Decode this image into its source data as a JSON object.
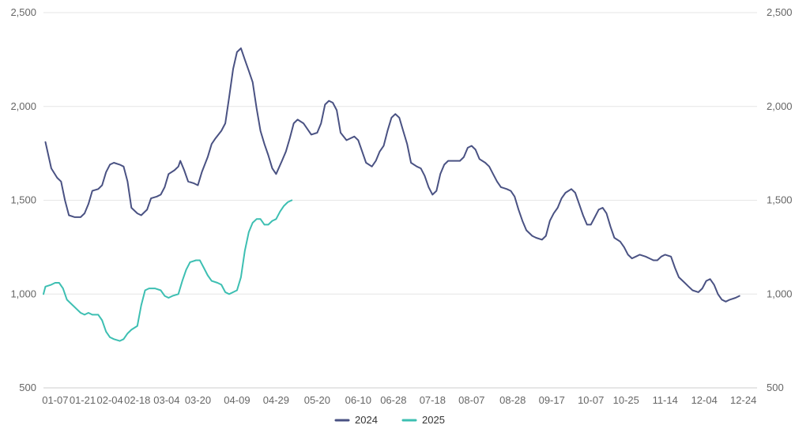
{
  "chart_data": {
    "type": "line",
    "title": "",
    "xlabel": "",
    "ylabel": "",
    "ylim": [
      500,
      2500
    ],
    "y_ticks": [
      500,
      1000,
      1500,
      2000,
      2500
    ],
    "y_tick_labels": [
      "500",
      "1,000",
      "1,500",
      "2,000",
      "2,500"
    ],
    "x_tick_labels": [
      "01-07",
      "01-21",
      "02-04",
      "02-18",
      "03-04",
      "03-20",
      "04-09",
      "04-29",
      "05-20",
      "06-10",
      "06-28",
      "07-18",
      "08-07",
      "08-28",
      "09-17",
      "10-07",
      "10-25",
      "11-14",
      "12-04",
      "12-24"
    ],
    "x_range_days": [
      1,
      366
    ],
    "grid": "horizontal",
    "legend_position": "bottom-center",
    "x_axis_format": "MM-DD",
    "series": [
      {
        "name": "2024",
        "color": "#4a5283",
        "points": [
          [
            "01-02",
            1810
          ],
          [
            "01-05",
            1670
          ],
          [
            "01-08",
            1620
          ],
          [
            "01-10",
            1600
          ],
          [
            "01-12",
            1500
          ],
          [
            "01-14",
            1420
          ],
          [
            "01-17",
            1410
          ],
          [
            "01-20",
            1410
          ],
          [
            "01-22",
            1430
          ],
          [
            "01-24",
            1480
          ],
          [
            "01-26",
            1550
          ],
          [
            "01-29",
            1560
          ],
          [
            "01-31",
            1580
          ],
          [
            "02-02",
            1650
          ],
          [
            "02-04",
            1690
          ],
          [
            "02-06",
            1700
          ],
          [
            "02-09",
            1690
          ],
          [
            "02-11",
            1680
          ],
          [
            "02-13",
            1600
          ],
          [
            "02-15",
            1460
          ],
          [
            "02-18",
            1430
          ],
          [
            "02-20",
            1420
          ],
          [
            "02-23",
            1450
          ],
          [
            "02-25",
            1510
          ],
          [
            "02-28",
            1520
          ],
          [
            "03-01",
            1530
          ],
          [
            "03-03",
            1570
          ],
          [
            "03-05",
            1640
          ],
          [
            "03-08",
            1660
          ],
          [
            "03-10",
            1680
          ],
          [
            "03-11",
            1710
          ],
          [
            "03-13",
            1660
          ],
          [
            "03-15",
            1600
          ],
          [
            "03-18",
            1590
          ],
          [
            "03-20",
            1580
          ],
          [
            "03-22",
            1650
          ],
          [
            "03-25",
            1730
          ],
          [
            "03-27",
            1800
          ],
          [
            "03-29",
            1830
          ],
          [
            "04-01",
            1870
          ],
          [
            "04-03",
            1910
          ],
          [
            "04-05",
            2050
          ],
          [
            "04-07",
            2200
          ],
          [
            "04-09",
            2290
          ],
          [
            "04-11",
            2310
          ],
          [
            "04-13",
            2250
          ],
          [
            "04-15",
            2190
          ],
          [
            "04-17",
            2130
          ],
          [
            "04-19",
            1990
          ],
          [
            "04-21",
            1870
          ],
          [
            "04-23",
            1800
          ],
          [
            "04-25",
            1740
          ],
          [
            "04-27",
            1670
          ],
          [
            "04-29",
            1640
          ],
          [
            "05-02",
            1710
          ],
          [
            "05-04",
            1760
          ],
          [
            "05-06",
            1830
          ],
          [
            "05-08",
            1910
          ],
          [
            "05-10",
            1930
          ],
          [
            "05-13",
            1910
          ],
          [
            "05-15",
            1880
          ],
          [
            "05-17",
            1850
          ],
          [
            "05-20",
            1860
          ],
          [
            "05-22",
            1910
          ],
          [
            "05-24",
            2010
          ],
          [
            "05-26",
            2030
          ],
          [
            "05-28",
            2020
          ],
          [
            "05-30",
            1980
          ],
          [
            "06-01",
            1860
          ],
          [
            "06-04",
            1820
          ],
          [
            "06-06",
            1830
          ],
          [
            "06-08",
            1840
          ],
          [
            "06-10",
            1820
          ],
          [
            "06-12",
            1760
          ],
          [
            "06-14",
            1700
          ],
          [
            "06-17",
            1680
          ],
          [
            "06-19",
            1710
          ],
          [
            "06-21",
            1760
          ],
          [
            "06-23",
            1790
          ],
          [
            "06-25",
            1870
          ],
          [
            "06-27",
            1940
          ],
          [
            "06-29",
            1960
          ],
          [
            "07-01",
            1940
          ],
          [
            "07-03",
            1870
          ],
          [
            "07-05",
            1800
          ],
          [
            "07-07",
            1700
          ],
          [
            "07-10",
            1680
          ],
          [
            "07-12",
            1670
          ],
          [
            "07-14",
            1630
          ],
          [
            "07-16",
            1570
          ],
          [
            "07-18",
            1530
          ],
          [
            "07-20",
            1550
          ],
          [
            "07-22",
            1640
          ],
          [
            "07-24",
            1690
          ],
          [
            "07-26",
            1710
          ],
          [
            "07-30",
            1710
          ],
          [
            "08-01",
            1710
          ],
          [
            "08-03",
            1730
          ],
          [
            "08-05",
            1780
          ],
          [
            "08-07",
            1790
          ],
          [
            "08-09",
            1770
          ],
          [
            "08-11",
            1720
          ],
          [
            "08-14",
            1700
          ],
          [
            "08-16",
            1680
          ],
          [
            "08-18",
            1640
          ],
          [
            "08-20",
            1600
          ],
          [
            "08-22",
            1570
          ],
          [
            "08-25",
            1560
          ],
          [
            "08-27",
            1550
          ],
          [
            "08-29",
            1520
          ],
          [
            "08-31",
            1450
          ],
          [
            "09-02",
            1390
          ],
          [
            "09-04",
            1340
          ],
          [
            "09-07",
            1310
          ],
          [
            "09-09",
            1300
          ],
          [
            "09-12",
            1290
          ],
          [
            "09-14",
            1310
          ],
          [
            "09-16",
            1390
          ],
          [
            "09-18",
            1430
          ],
          [
            "09-20",
            1460
          ],
          [
            "09-22",
            1510
          ],
          [
            "09-24",
            1540
          ],
          [
            "09-27",
            1560
          ],
          [
            "09-29",
            1540
          ],
          [
            "10-01",
            1480
          ],
          [
            "10-03",
            1420
          ],
          [
            "10-05",
            1370
          ],
          [
            "10-07",
            1370
          ],
          [
            "10-09",
            1410
          ],
          [
            "10-11",
            1450
          ],
          [
            "10-13",
            1460
          ],
          [
            "10-15",
            1430
          ],
          [
            "10-17",
            1360
          ],
          [
            "10-19",
            1300
          ],
          [
            "10-22",
            1280
          ],
          [
            "10-24",
            1250
          ],
          [
            "10-26",
            1210
          ],
          [
            "10-28",
            1190
          ],
          [
            "10-30",
            1200
          ],
          [
            "11-01",
            1210
          ],
          [
            "11-04",
            1200
          ],
          [
            "11-06",
            1190
          ],
          [
            "11-08",
            1180
          ],
          [
            "11-10",
            1180
          ],
          [
            "11-12",
            1200
          ],
          [
            "11-14",
            1210
          ],
          [
            "11-17",
            1200
          ],
          [
            "11-19",
            1140
          ],
          [
            "11-21",
            1090
          ],
          [
            "11-24",
            1060
          ],
          [
            "11-26",
            1040
          ],
          [
            "11-28",
            1020
          ],
          [
            "12-01",
            1010
          ],
          [
            "12-03",
            1030
          ],
          [
            "12-05",
            1070
          ],
          [
            "12-07",
            1080
          ],
          [
            "12-09",
            1050
          ],
          [
            "12-11",
            1000
          ],
          [
            "12-13",
            970
          ],
          [
            "12-15",
            960
          ],
          [
            "12-17",
            970
          ],
          [
            "12-20",
            980
          ],
          [
            "12-22",
            990
          ]
        ]
      },
      {
        "name": "2025",
        "color": "#3dbfb2",
        "points": [
          [
            "01-01",
            1000
          ],
          [
            "01-02",
            1040
          ],
          [
            "01-05",
            1050
          ],
          [
            "01-07",
            1060
          ],
          [
            "01-09",
            1060
          ],
          [
            "01-11",
            1030
          ],
          [
            "01-13",
            970
          ],
          [
            "01-15",
            950
          ],
          [
            "01-18",
            920
          ],
          [
            "01-20",
            900
          ],
          [
            "01-22",
            890
          ],
          [
            "01-24",
            900
          ],
          [
            "01-26",
            890
          ],
          [
            "01-29",
            890
          ],
          [
            "01-31",
            860
          ],
          [
            "02-02",
            800
          ],
          [
            "02-04",
            770
          ],
          [
            "02-06",
            760
          ],
          [
            "02-09",
            750
          ],
          [
            "02-11",
            760
          ],
          [
            "02-13",
            790
          ],
          [
            "02-15",
            810
          ],
          [
            "02-18",
            830
          ],
          [
            "02-20",
            940
          ],
          [
            "02-22",
            1020
          ],
          [
            "02-24",
            1030
          ],
          [
            "02-27",
            1030
          ],
          [
            "03-01",
            1020
          ],
          [
            "03-03",
            990
          ],
          [
            "03-05",
            980
          ],
          [
            "03-07",
            990
          ],
          [
            "03-10",
            1000
          ],
          [
            "03-12",
            1070
          ],
          [
            "03-14",
            1130
          ],
          [
            "03-16",
            1170
          ],
          [
            "03-19",
            1180
          ],
          [
            "03-21",
            1180
          ],
          [
            "03-23",
            1140
          ],
          [
            "03-25",
            1100
          ],
          [
            "03-27",
            1070
          ],
          [
            "03-30",
            1060
          ],
          [
            "04-01",
            1050
          ],
          [
            "04-03",
            1010
          ],
          [
            "04-05",
            1000
          ],
          [
            "04-07",
            1010
          ],
          [
            "04-09",
            1020
          ],
          [
            "04-11",
            1090
          ],
          [
            "04-13",
            1230
          ],
          [
            "04-15",
            1330
          ],
          [
            "04-17",
            1380
          ],
          [
            "04-19",
            1400
          ],
          [
            "04-21",
            1400
          ],
          [
            "04-23",
            1370
          ],
          [
            "04-25",
            1370
          ],
          [
            "04-27",
            1390
          ],
          [
            "04-29",
            1400
          ],
          [
            "05-01",
            1440
          ],
          [
            "05-03",
            1470
          ],
          [
            "05-05",
            1490
          ],
          [
            "05-07",
            1500
          ]
        ]
      }
    ]
  }
}
